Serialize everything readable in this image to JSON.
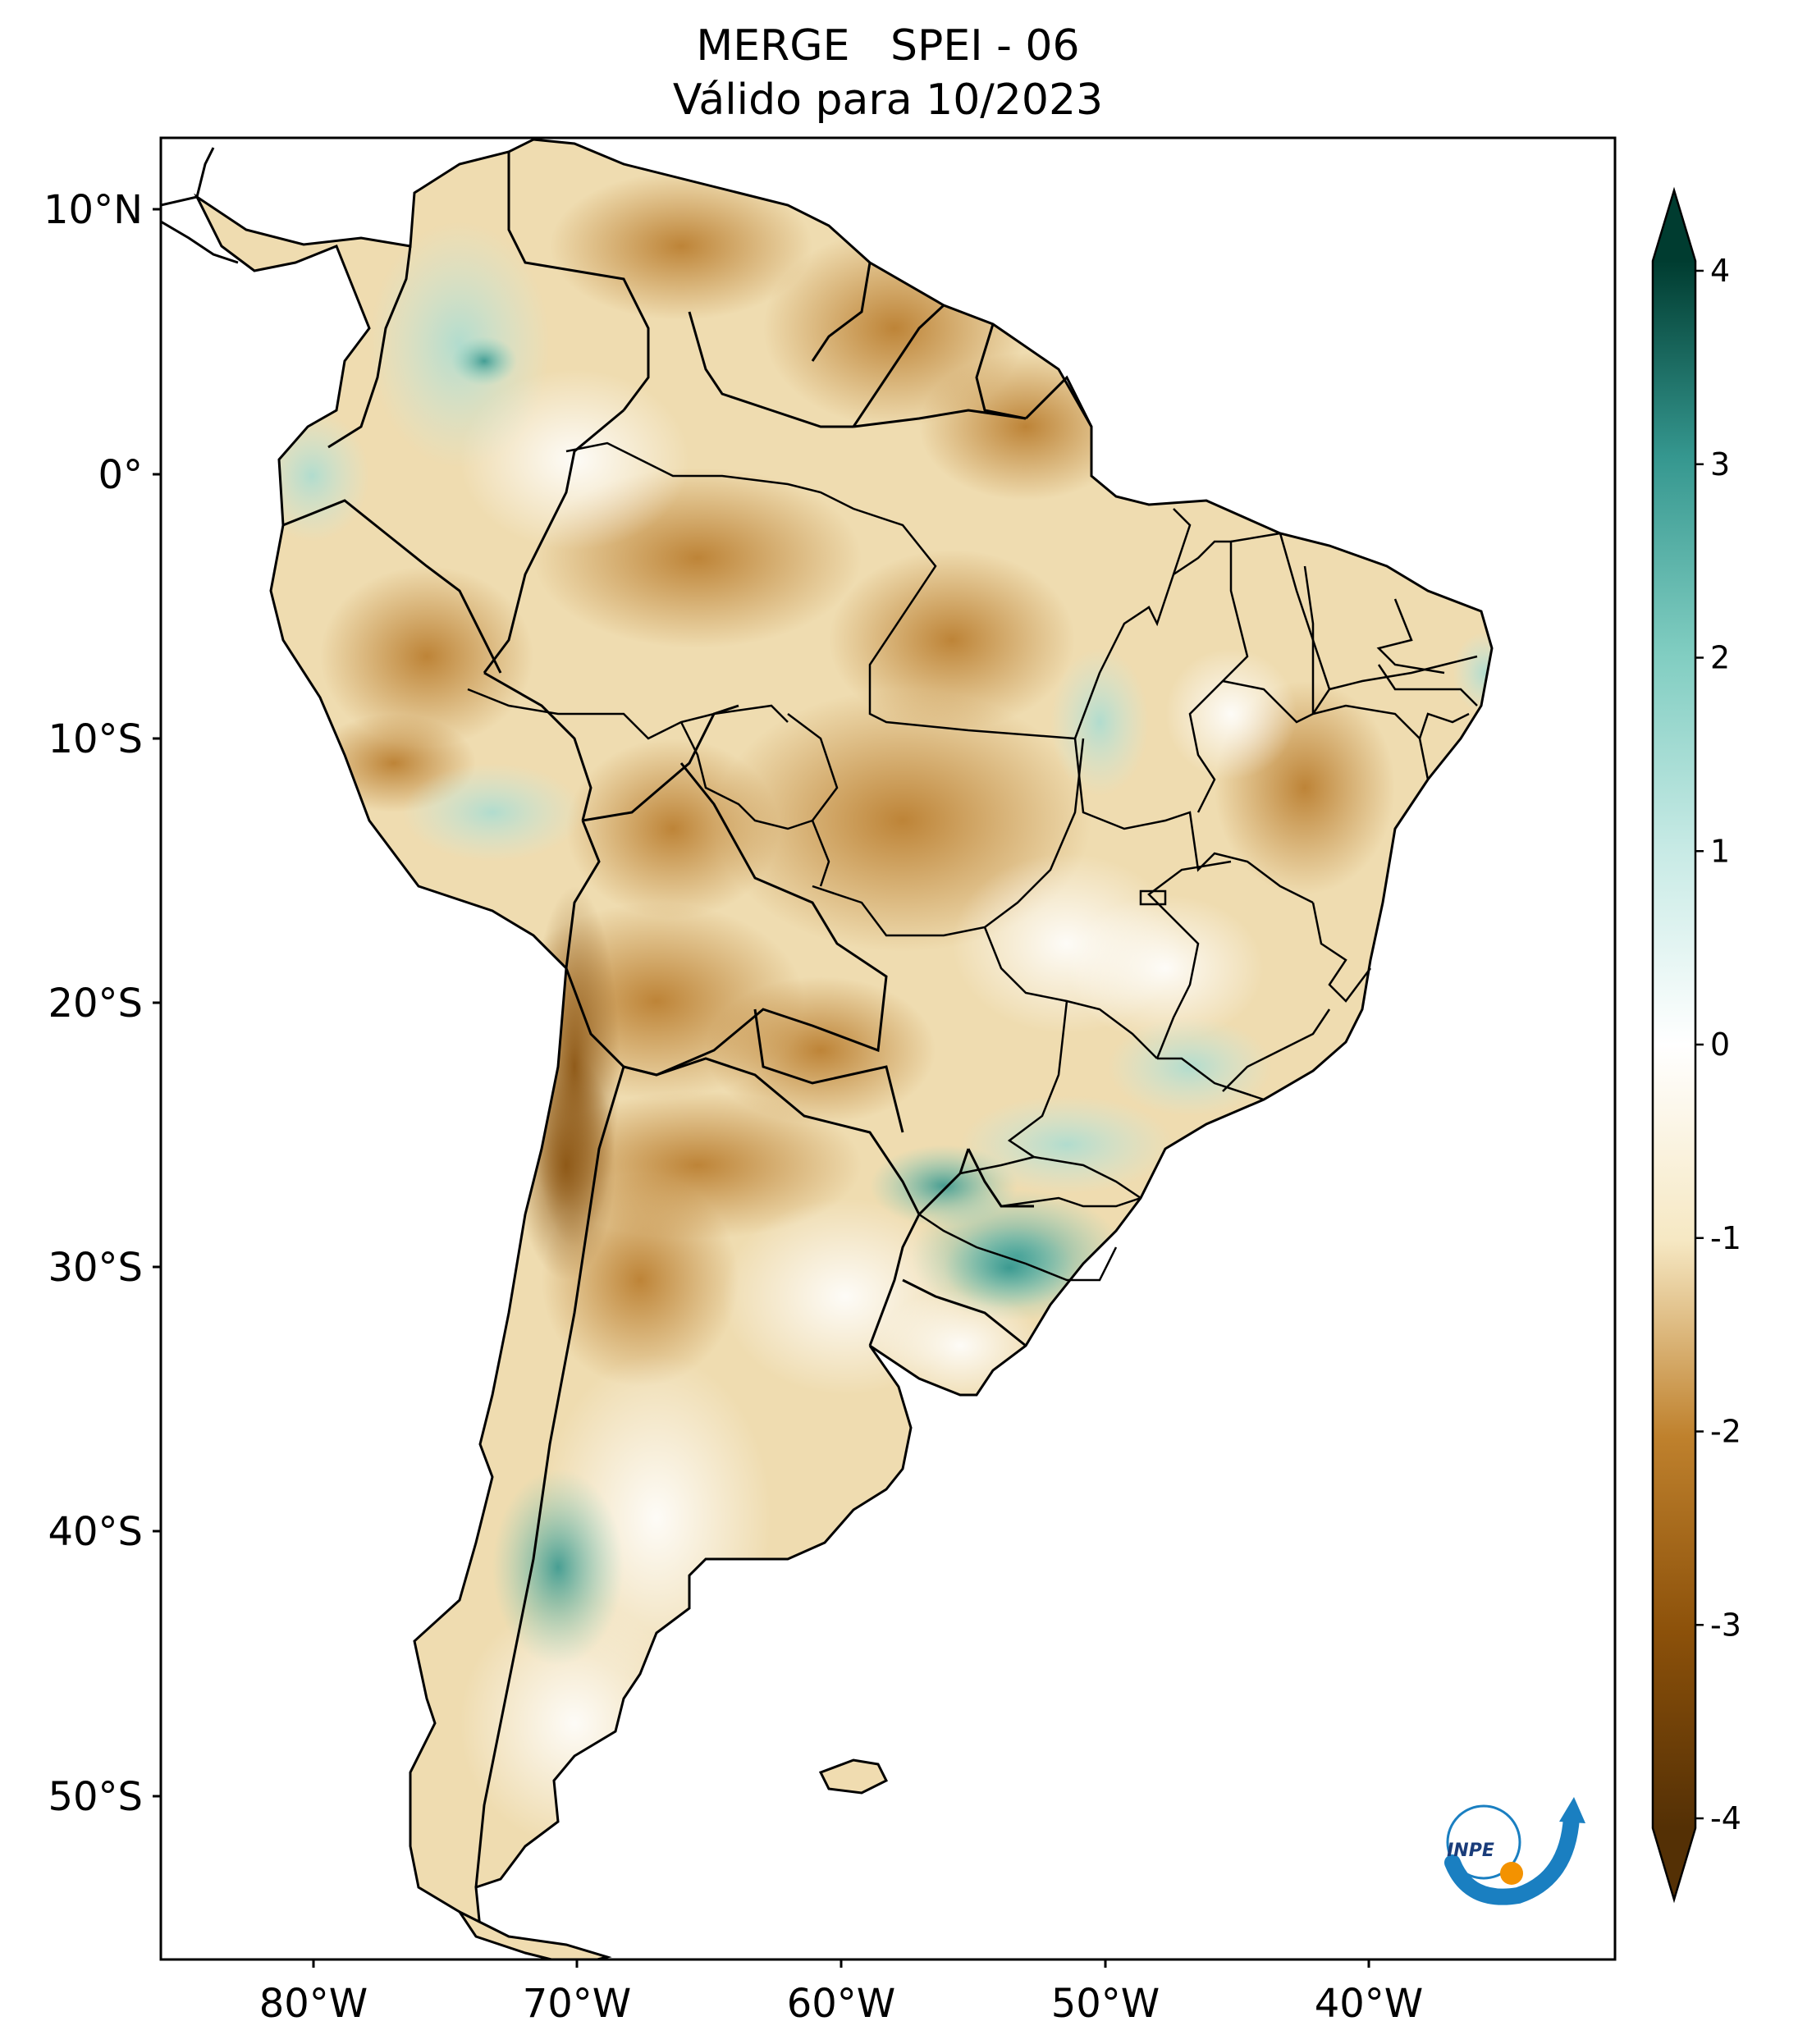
{
  "title": {
    "line1": "MERGE   SPEI - 06",
    "line2": "Válido para 10/2023"
  },
  "map": {
    "lat_ticks": [
      "10°N",
      "0°",
      "10°S",
      "20°S",
      "30°S",
      "40°S",
      "50°S"
    ],
    "lon_ticks": [
      "80°W",
      "70°W",
      "60°W",
      "50°W",
      "40°W"
    ],
    "logo_text": "INPE"
  },
  "colorbar": {
    "ticks": [
      "4",
      "3",
      "2",
      "1",
      "0",
      "-1",
      "-2",
      "-3",
      "-4"
    ],
    "min": -4,
    "max": 4,
    "colors": {
      "very_dry": "#543005",
      "dry": "#bf812d",
      "slightly_dry": "#f6e8c3",
      "neutral": "#ffffff",
      "slightly_wet": "#c7eae5",
      "wet": "#35978f",
      "very_wet": "#003c30"
    }
  }
}
